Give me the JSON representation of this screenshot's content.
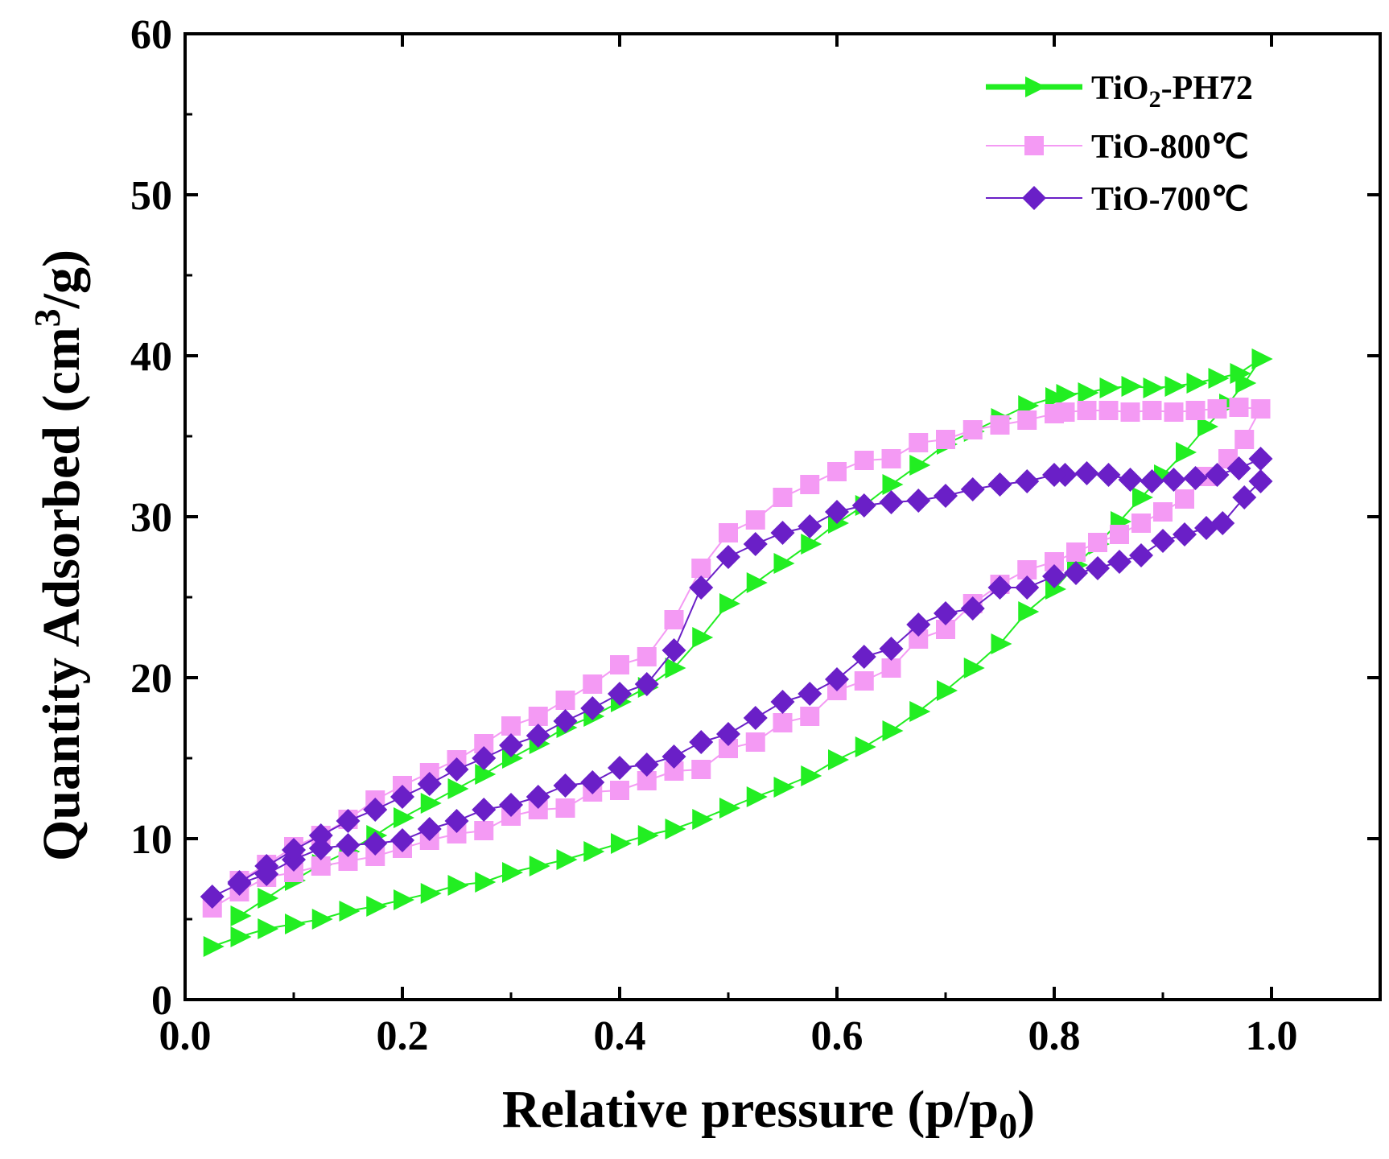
{
  "chart_data": {
    "type": "scatter",
    "xlabel": "Relative pressure (p/p",
    "xlabel_sub": "0",
    "xlabel_end": ")",
    "ylabel": "Quantity Adsorbed (cm",
    "ylabel_sup": "3",
    "ylabel_end": "/g)",
    "xlim": [
      0.0,
      1.1
    ],
    "ylim": [
      0,
      60
    ],
    "xticks": [
      "0.0",
      "0.2",
      "0.4",
      "0.6",
      "0.8",
      "1.0"
    ],
    "yticks": [
      "0",
      "10",
      "20",
      "30",
      "40",
      "50",
      "60"
    ],
    "grid": false,
    "legend_position": "top-right",
    "series": [
      {
        "name": "TiO",
        "name_sub": "2",
        "name_end": "-PH72",
        "color": "#22ee22",
        "marker": "triangle-right",
        "adsorption": [
          [
            0.025,
            3.3
          ],
          [
            0.05,
            3.9
          ],
          [
            0.075,
            4.4
          ],
          [
            0.1,
            4.7
          ],
          [
            0.125,
            5.0
          ],
          [
            0.15,
            5.5
          ],
          [
            0.175,
            5.8
          ],
          [
            0.2,
            6.2
          ],
          [
            0.225,
            6.6
          ],
          [
            0.25,
            7.1
          ],
          [
            0.275,
            7.3
          ],
          [
            0.3,
            7.9
          ],
          [
            0.325,
            8.3
          ],
          [
            0.35,
            8.7
          ],
          [
            0.375,
            9.2
          ],
          [
            0.4,
            9.7
          ],
          [
            0.425,
            10.2
          ],
          [
            0.45,
            10.6
          ],
          [
            0.475,
            11.2
          ],
          [
            0.5,
            11.9
          ],
          [
            0.525,
            12.6
          ],
          [
            0.55,
            13.2
          ],
          [
            0.575,
            13.9
          ],
          [
            0.6,
            14.9
          ],
          [
            0.625,
            15.7
          ],
          [
            0.65,
            16.7
          ],
          [
            0.675,
            17.9
          ],
          [
            0.7,
            19.2
          ],
          [
            0.725,
            20.6
          ],
          [
            0.75,
            22.1
          ],
          [
            0.775,
            24.1
          ],
          [
            0.8,
            25.5
          ],
          [
            0.82,
            27.0
          ],
          [
            0.84,
            28.3
          ],
          [
            0.86,
            29.7
          ],
          [
            0.88,
            31.2
          ],
          [
            0.9,
            32.6
          ],
          [
            0.92,
            34.0
          ],
          [
            0.94,
            35.6
          ],
          [
            0.96,
            37.0
          ],
          [
            0.975,
            38.3
          ],
          [
            0.99,
            39.8
          ]
        ],
        "desorption": [
          [
            0.99,
            39.8
          ],
          [
            0.97,
            38.9
          ],
          [
            0.95,
            38.6
          ],
          [
            0.93,
            38.3
          ],
          [
            0.91,
            38.1
          ],
          [
            0.89,
            38.0
          ],
          [
            0.87,
            38.1
          ],
          [
            0.85,
            38.0
          ],
          [
            0.83,
            37.7
          ],
          [
            0.81,
            37.6
          ],
          [
            0.8,
            37.4
          ],
          [
            0.775,
            36.9
          ],
          [
            0.75,
            36.1
          ],
          [
            0.725,
            35.3
          ],
          [
            0.7,
            34.5
          ],
          [
            0.675,
            33.2
          ],
          [
            0.65,
            32.0
          ],
          [
            0.625,
            30.7
          ],
          [
            0.6,
            29.6
          ],
          [
            0.575,
            28.3
          ],
          [
            0.55,
            27.1
          ],
          [
            0.525,
            25.9
          ],
          [
            0.5,
            24.6
          ],
          [
            0.475,
            22.5
          ],
          [
            0.45,
            20.6
          ],
          [
            0.425,
            19.4
          ],
          [
            0.4,
            18.5
          ],
          [
            0.375,
            17.6
          ],
          [
            0.35,
            16.9
          ],
          [
            0.325,
            15.9
          ],
          [
            0.3,
            15.0
          ],
          [
            0.275,
            14.0
          ],
          [
            0.25,
            13.1
          ],
          [
            0.225,
            12.2
          ],
          [
            0.2,
            11.3
          ],
          [
            0.175,
            10.2
          ],
          [
            0.15,
            9.2
          ],
          [
            0.125,
            8.4
          ],
          [
            0.1,
            7.4
          ],
          [
            0.075,
            6.3
          ],
          [
            0.05,
            5.2
          ]
        ]
      },
      {
        "name": "TiO-800℃",
        "color": "#f49af4",
        "marker": "square",
        "adsorption": [
          [
            0.025,
            5.7
          ],
          [
            0.05,
            6.7
          ],
          [
            0.075,
            7.6
          ],
          [
            0.1,
            7.9
          ],
          [
            0.125,
            8.3
          ],
          [
            0.15,
            8.6
          ],
          [
            0.175,
            8.9
          ],
          [
            0.2,
            9.4
          ],
          [
            0.225,
            9.9
          ],
          [
            0.25,
            10.3
          ],
          [
            0.275,
            10.5
          ],
          [
            0.3,
            11.4
          ],
          [
            0.325,
            11.8
          ],
          [
            0.35,
            11.9
          ],
          [
            0.375,
            12.9
          ],
          [
            0.4,
            13.0
          ],
          [
            0.425,
            13.6
          ],
          [
            0.45,
            14.2
          ],
          [
            0.475,
            14.3
          ],
          [
            0.5,
            15.6
          ],
          [
            0.525,
            16.0
          ],
          [
            0.55,
            17.2
          ],
          [
            0.575,
            17.6
          ],
          [
            0.6,
            19.2
          ],
          [
            0.625,
            19.8
          ],
          [
            0.65,
            20.6
          ],
          [
            0.675,
            22.4
          ],
          [
            0.7,
            23.0
          ],
          [
            0.725,
            24.6
          ],
          [
            0.75,
            25.8
          ],
          [
            0.775,
            26.7
          ],
          [
            0.8,
            27.2
          ],
          [
            0.82,
            27.8
          ],
          [
            0.84,
            28.4
          ],
          [
            0.86,
            28.9
          ],
          [
            0.88,
            29.6
          ],
          [
            0.9,
            30.3
          ],
          [
            0.92,
            31.1
          ],
          [
            0.94,
            32.5
          ],
          [
            0.96,
            33.6
          ],
          [
            0.975,
            34.8
          ],
          [
            0.99,
            36.7
          ]
        ],
        "desorption": [
          [
            0.99,
            36.7
          ],
          [
            0.97,
            36.8
          ],
          [
            0.95,
            36.7
          ],
          [
            0.93,
            36.6
          ],
          [
            0.91,
            36.5
          ],
          [
            0.89,
            36.6
          ],
          [
            0.87,
            36.5
          ],
          [
            0.85,
            36.6
          ],
          [
            0.83,
            36.6
          ],
          [
            0.81,
            36.5
          ],
          [
            0.8,
            36.4
          ],
          [
            0.775,
            36.0
          ],
          [
            0.75,
            35.7
          ],
          [
            0.725,
            35.4
          ],
          [
            0.7,
            34.8
          ],
          [
            0.675,
            34.6
          ],
          [
            0.65,
            33.6
          ],
          [
            0.625,
            33.5
          ],
          [
            0.6,
            32.8
          ],
          [
            0.575,
            32.0
          ],
          [
            0.55,
            31.2
          ],
          [
            0.525,
            29.8
          ],
          [
            0.5,
            29.0
          ],
          [
            0.475,
            26.8
          ],
          [
            0.45,
            23.6
          ],
          [
            0.425,
            21.3
          ],
          [
            0.4,
            20.8
          ],
          [
            0.375,
            19.6
          ],
          [
            0.35,
            18.6
          ],
          [
            0.325,
            17.6
          ],
          [
            0.3,
            17.0
          ],
          [
            0.275,
            15.9
          ],
          [
            0.25,
            14.9
          ],
          [
            0.225,
            14.1
          ],
          [
            0.2,
            13.3
          ],
          [
            0.175,
            12.4
          ],
          [
            0.15,
            11.2
          ],
          [
            0.125,
            10.2
          ],
          [
            0.1,
            9.5
          ],
          [
            0.075,
            8.4
          ],
          [
            0.05,
            7.4
          ]
        ]
      },
      {
        "name": "TiO-700℃",
        "color": "#6a1fc7",
        "marker": "diamond",
        "adsorption": [
          [
            0.025,
            6.4
          ],
          [
            0.05,
            7.2
          ],
          [
            0.075,
            7.8
          ],
          [
            0.1,
            8.7
          ],
          [
            0.125,
            9.4
          ],
          [
            0.15,
            9.6
          ],
          [
            0.175,
            9.7
          ],
          [
            0.2,
            9.9
          ],
          [
            0.225,
            10.6
          ],
          [
            0.25,
            11.1
          ],
          [
            0.275,
            11.8
          ],
          [
            0.3,
            12.1
          ],
          [
            0.325,
            12.6
          ],
          [
            0.35,
            13.3
          ],
          [
            0.375,
            13.5
          ],
          [
            0.4,
            14.4
          ],
          [
            0.425,
            14.6
          ],
          [
            0.45,
            15.1
          ],
          [
            0.475,
            16.0
          ],
          [
            0.5,
            16.5
          ],
          [
            0.525,
            17.5
          ],
          [
            0.55,
            18.5
          ],
          [
            0.575,
            19.0
          ],
          [
            0.6,
            19.9
          ],
          [
            0.625,
            21.3
          ],
          [
            0.65,
            21.8
          ],
          [
            0.675,
            23.3
          ],
          [
            0.7,
            24.0
          ],
          [
            0.725,
            24.3
          ],
          [
            0.75,
            25.6
          ],
          [
            0.775,
            25.6
          ],
          [
            0.8,
            26.3
          ],
          [
            0.82,
            26.5
          ],
          [
            0.84,
            26.8
          ],
          [
            0.86,
            27.2
          ],
          [
            0.88,
            27.6
          ],
          [
            0.9,
            28.5
          ],
          [
            0.92,
            28.9
          ],
          [
            0.94,
            29.3
          ],
          [
            0.955,
            29.6
          ],
          [
            0.975,
            31.2
          ],
          [
            0.99,
            32.2
          ]
        ],
        "desorption": [
          [
            0.99,
            33.6
          ],
          [
            0.97,
            33.0
          ],
          [
            0.95,
            32.6
          ],
          [
            0.93,
            32.4
          ],
          [
            0.91,
            32.3
          ],
          [
            0.89,
            32.2
          ],
          [
            0.87,
            32.3
          ],
          [
            0.85,
            32.6
          ],
          [
            0.83,
            32.7
          ],
          [
            0.81,
            32.6
          ],
          [
            0.8,
            32.6
          ],
          [
            0.775,
            32.2
          ],
          [
            0.75,
            32.0
          ],
          [
            0.725,
            31.7
          ],
          [
            0.7,
            31.3
          ],
          [
            0.675,
            31.0
          ],
          [
            0.65,
            30.9
          ],
          [
            0.625,
            30.7
          ],
          [
            0.6,
            30.3
          ],
          [
            0.575,
            29.4
          ],
          [
            0.55,
            29.0
          ],
          [
            0.525,
            28.3
          ],
          [
            0.5,
            27.5
          ],
          [
            0.475,
            25.6
          ],
          [
            0.45,
            21.7
          ],
          [
            0.425,
            19.6
          ],
          [
            0.4,
            19.0
          ],
          [
            0.375,
            18.1
          ],
          [
            0.35,
            17.3
          ],
          [
            0.325,
            16.4
          ],
          [
            0.3,
            15.8
          ],
          [
            0.275,
            15.0
          ],
          [
            0.25,
            14.3
          ],
          [
            0.225,
            13.4
          ],
          [
            0.2,
            12.6
          ],
          [
            0.175,
            11.8
          ],
          [
            0.15,
            11.1
          ],
          [
            0.125,
            10.2
          ],
          [
            0.1,
            9.3
          ],
          [
            0.075,
            8.3
          ],
          [
            0.05,
            7.3
          ]
        ]
      }
    ]
  }
}
